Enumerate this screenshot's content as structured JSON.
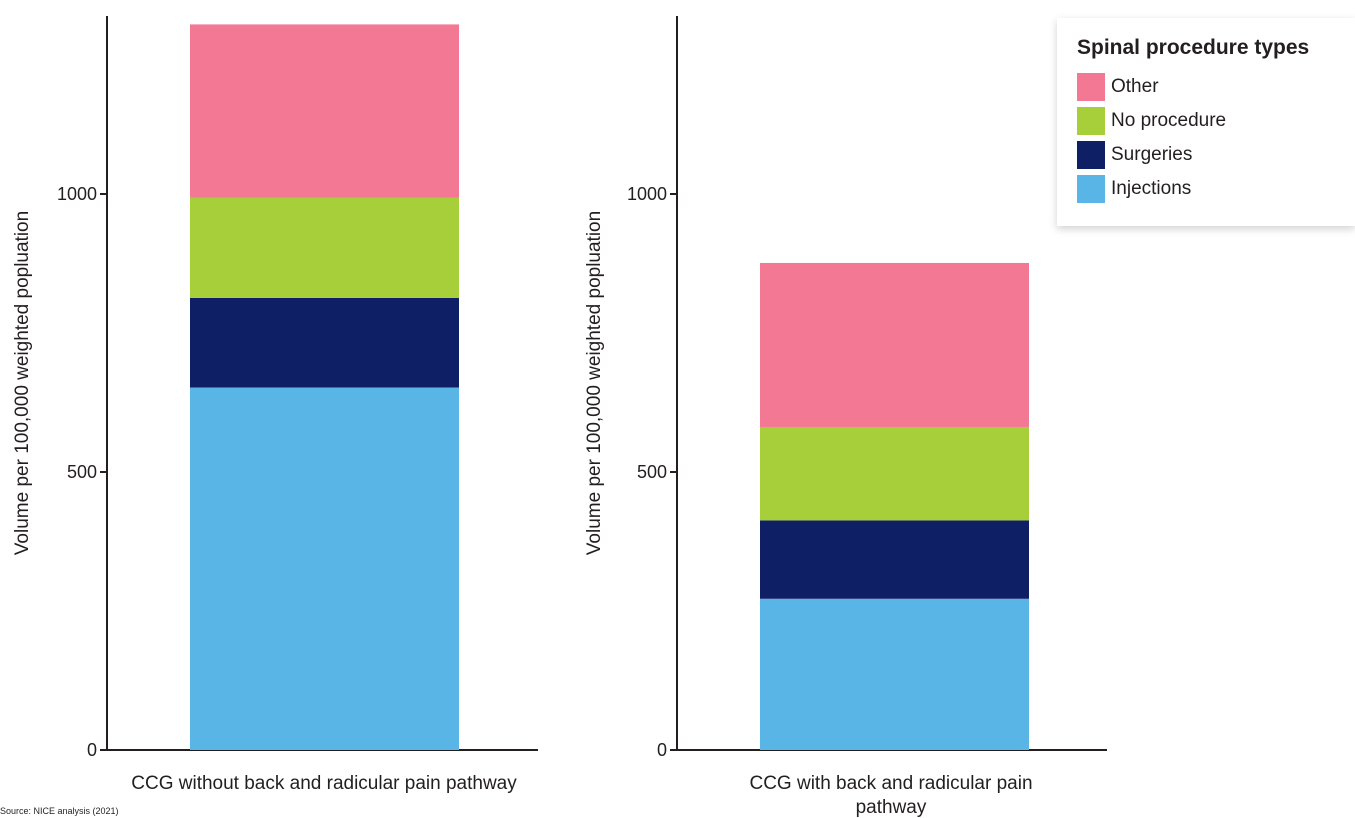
{
  "chart_data": {
    "type": "bar",
    "stacked": true,
    "ylabel": "Volume per 100,000 weighted popluation",
    "ylim": [
      0,
      1300
    ],
    "yticks": [
      0,
      500,
      1000
    ],
    "legend": {
      "title": "Spinal procedure types",
      "position": "top-right",
      "items": [
        "Other",
        "No procedure",
        "Surgeries",
        "Injections"
      ]
    },
    "colors": {
      "Injections": "#59b5e6",
      "Surgeries": "#0e1f66",
      "No procedure": "#a7cf3a",
      "Other": "#f27893"
    },
    "panels": [
      {
        "category": "CCG without back and radicular pain pathway",
        "series": [
          {
            "name": "Injections",
            "value": 652
          },
          {
            "name": "Surgeries",
            "value": 161
          },
          {
            "name": "No procedure",
            "value": 180
          },
          {
            "name": "Other",
            "value": 312
          }
        ]
      },
      {
        "category": "CCG with back and radicular pain pathway",
        "series": [
          {
            "name": "Injections",
            "value": 272
          },
          {
            "name": "Surgeries",
            "value": 141
          },
          {
            "name": "No procedure",
            "value": 168
          },
          {
            "name": "Other",
            "value": 295
          }
        ]
      }
    ]
  },
  "footnote": "Source: NICE analysis (2021)"
}
